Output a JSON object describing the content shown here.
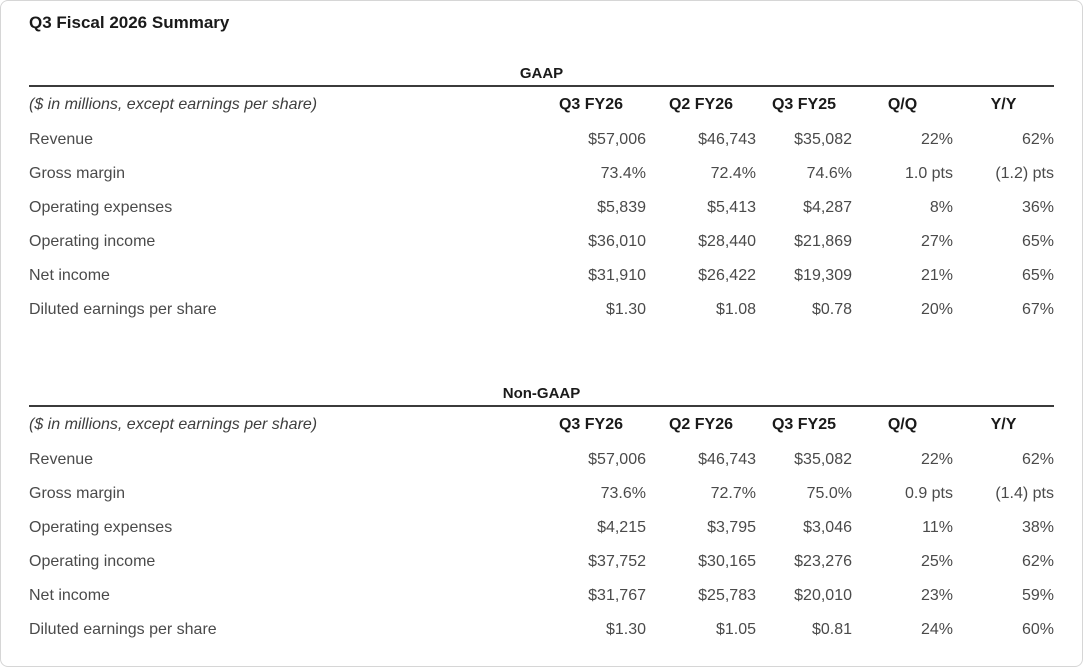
{
  "page_title": "Q3 Fiscal 2026 Summary",
  "tables": [
    {
      "section_label": "GAAP",
      "caption": "($ in millions, except earnings per share)",
      "columns": [
        "Q3 FY26",
        "Q2 FY26",
        "Q3 FY25",
        "Q/Q",
        "Y/Y"
      ],
      "rows": [
        {
          "label": "Revenue",
          "values": [
            "$57,006",
            "$46,743",
            "$35,082",
            "22%",
            "62%"
          ]
        },
        {
          "label": "Gross margin",
          "values": [
            "73.4%",
            "72.4%",
            "74.6%",
            "1.0 pts",
            "(1.2) pts"
          ]
        },
        {
          "label": "Operating expenses",
          "values": [
            "$5,839",
            "$5,413",
            "$4,287",
            "8%",
            "36%"
          ]
        },
        {
          "label": "Operating income",
          "values": [
            "$36,010",
            "$28,440",
            "$21,869",
            "27%",
            "65%"
          ]
        },
        {
          "label": "Net income",
          "values": [
            "$31,910",
            "$26,422",
            "$19,309",
            "21%",
            "65%"
          ]
        },
        {
          "label": "Diluted earnings per share",
          "values": [
            "$1.30",
            "$1.08",
            "$0.78",
            "20%",
            "67%"
          ]
        }
      ]
    },
    {
      "section_label": "Non-GAAP",
      "caption": "($ in millions, except earnings per share)",
      "columns": [
        "Q3 FY26",
        "Q2 FY26",
        "Q3 FY25",
        "Q/Q",
        "Y/Y"
      ],
      "rows": [
        {
          "label": "Revenue",
          "values": [
            "$57,006",
            "$46,743",
            "$35,082",
            "22%",
            "62%"
          ]
        },
        {
          "label": "Gross margin",
          "values": [
            "73.6%",
            "72.7%",
            "75.0%",
            "0.9 pts",
            "(1.4) pts"
          ]
        },
        {
          "label": "Operating expenses",
          "values": [
            "$4,215",
            "$3,795",
            "$3,046",
            "11%",
            "38%"
          ]
        },
        {
          "label": "Operating income",
          "values": [
            "$37,752",
            "$30,165",
            "$23,276",
            "25%",
            "62%"
          ]
        },
        {
          "label": "Net income",
          "values": [
            "$31,767",
            "$25,783",
            "$20,010",
            "23%",
            "59%"
          ]
        },
        {
          "label": "Diluted earnings per share",
          "values": [
            "$1.30",
            "$1.05",
            "$0.81",
            "24%",
            "60%"
          ]
        }
      ]
    }
  ],
  "colors": {
    "heading_text": "#1a1a1a",
    "body_text": "#4a4a4a",
    "rule": "#3b3b3b",
    "card_border": "#d6d6d6",
    "background": "#ffffff"
  }
}
